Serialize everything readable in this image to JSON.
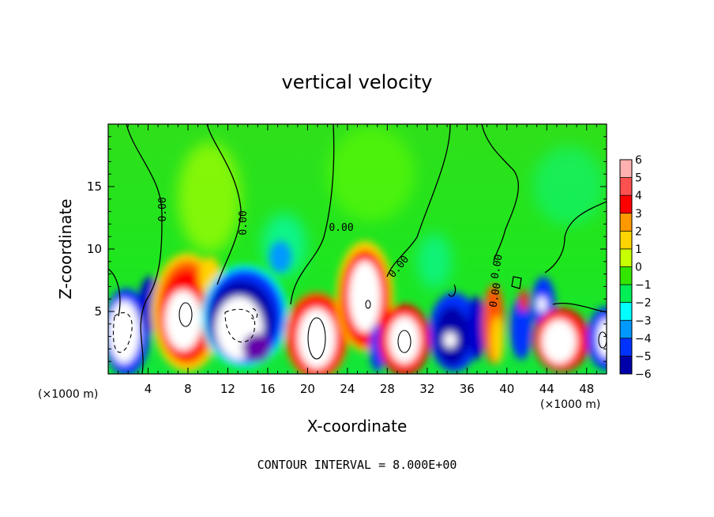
{
  "chart_data": {
    "type": "heatmap",
    "title": "vertical velocity",
    "xlabel": "X-coordinate",
    "ylabel": "Z-coordinate",
    "x_unit_left": "(×1000 m)",
    "x_unit_right": "(×1000 m)",
    "xlim": [
      0,
      50
    ],
    "ylim": [
      0,
      20
    ],
    "x_ticks": [
      4,
      8,
      12,
      16,
      20,
      24,
      28,
      32,
      36,
      40,
      44,
      48
    ],
    "y_ticks": [
      5,
      10,
      15
    ],
    "colorbar": {
      "levels": [
        6,
        5,
        4,
        3,
        2,
        1,
        0,
        -1,
        -2,
        -3,
        -4,
        -5,
        -6
      ],
      "colors": [
        "#ffb0b0",
        "#ff5050",
        "#ff0000",
        "#ff9900",
        "#ffd400",
        "#c8ff00",
        "#33e600",
        "#00ee55",
        "#00ffff",
        "#0099ff",
        "#0033ff",
        "#0000aa",
        "#6600aa"
      ]
    },
    "footer": "CONTOUR INTERVAL = 8.000E+00",
    "contour_labels": [
      "0.00",
      "0.00",
      "0.00",
      "0.00",
      "0.00",
      "0.00"
    ],
    "cells": [
      {
        "x": 1.5,
        "z": 3.5,
        "value": -8
      },
      {
        "x": 4.0,
        "z": 4.0,
        "value": -4
      },
      {
        "x": 8.0,
        "z": 4.5,
        "value": 8
      },
      {
        "x": 10.5,
        "z": 5.0,
        "value": 3
      },
      {
        "x": 13.5,
        "z": 3.5,
        "value": -8
      },
      {
        "x": 15.0,
        "z": 9.5,
        "value": -1
      },
      {
        "x": 21.0,
        "z": 3.0,
        "value": 9
      },
      {
        "x": 25.0,
        "z": 5.5,
        "value": 8
      },
      {
        "x": 27.0,
        "z": 3.0,
        "value": -3
      },
      {
        "x": 29.5,
        "z": 2.8,
        "value": 8
      },
      {
        "x": 34.0,
        "z": 3.0,
        "value": -5
      },
      {
        "x": 36.5,
        "z": 3.5,
        "value": -4
      },
      {
        "x": 38.0,
        "z": 4.0,
        "value": 4
      },
      {
        "x": 41.0,
        "z": 4.5,
        "value": -3
      },
      {
        "x": 43.5,
        "z": 5.5,
        "value": -4
      },
      {
        "x": 45.5,
        "z": 3.0,
        "value": 9
      },
      {
        "x": 49.5,
        "z": 3.0,
        "value": 7
      }
    ]
  }
}
